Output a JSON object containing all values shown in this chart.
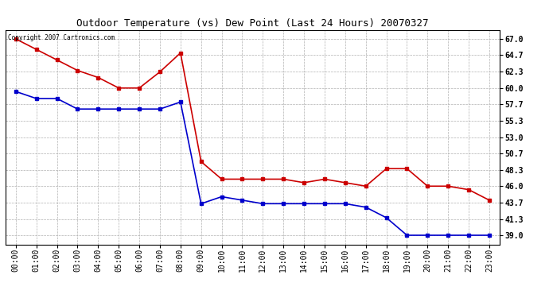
{
  "title": "Outdoor Temperature (vs) Dew Point (Last 24 Hours) 20070327",
  "copyright_text": "Copyright 2007 Cartronics.com",
  "x_labels": [
    "00:00",
    "01:00",
    "02:00",
    "03:00",
    "04:00",
    "05:00",
    "06:00",
    "07:00",
    "08:00",
    "09:00",
    "10:00",
    "11:00",
    "12:00",
    "13:00",
    "14:00",
    "15:00",
    "16:00",
    "17:00",
    "18:00",
    "19:00",
    "20:00",
    "21:00",
    "22:00",
    "23:00"
  ],
  "temp_data": [
    67.0,
    65.5,
    64.0,
    62.5,
    61.5,
    60.0,
    60.0,
    62.3,
    65.0,
    49.5,
    47.0,
    47.0,
    47.0,
    47.0,
    46.5,
    47.0,
    46.5,
    46.0,
    48.5,
    48.5,
    46.0,
    46.0,
    45.5,
    44.0
  ],
  "dew_data": [
    59.5,
    58.5,
    58.5,
    57.0,
    57.0,
    57.0,
    57.0,
    57.0,
    58.0,
    43.5,
    44.5,
    44.0,
    43.5,
    43.5,
    43.5,
    43.5,
    43.5,
    43.0,
    41.5,
    39.0,
    39.0,
    39.0,
    39.0,
    39.0
  ],
  "temp_color": "#cc0000",
  "dew_color": "#0000cc",
  "bg_color": "#ffffff",
  "plot_bg_color": "#ffffff",
  "grid_color": "#b0b0b0",
  "ylim_min": 37.7,
  "ylim_max": 68.3,
  "yticks": [
    39.0,
    41.3,
    43.7,
    46.0,
    48.3,
    50.7,
    53.0,
    55.3,
    57.7,
    60.0,
    62.3,
    64.7,
    67.0
  ],
  "title_fontsize": 9,
  "tick_fontsize": 7,
  "marker": "s",
  "marker_size": 2.5,
  "line_width": 1.2
}
